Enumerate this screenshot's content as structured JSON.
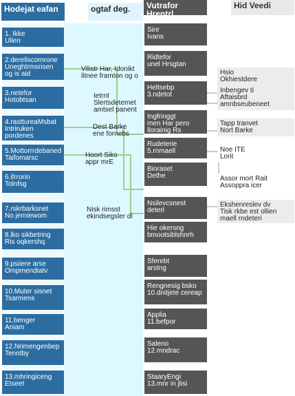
{
  "headers": {
    "left": "Hodejat eafan",
    "middle": "ogtaf deg.",
    "right": "Vutrafor Hrentrl",
    "far_right": "Hid Veedi"
  },
  "left_steps": [
    {
      "label": "1. Ikke",
      "sub": "Ulien"
    },
    {
      "label": "2.dereliscomrone",
      "sub": "Uneghtrmsrisen og is aid"
    },
    {
      "label": "3.netefor",
      "sub": "Hotobtsan"
    },
    {
      "label": "4.rasttureaMsbat",
      "sub": "Intriruken pordenes"
    },
    {
      "label": "5.Mottorrrdebaned",
      "sub": "Taifomarsc"
    },
    {
      "label": "6.ifrrorin",
      "sub": "Tolnfsg"
    },
    {
      "label": "7.rskrbarksnet",
      "sub": "No jerniewom"
    },
    {
      "label": "8.lko sikbetring",
      "sub": "Ris oqkershq"
    },
    {
      "label": "9.psiiere arse",
      "sub": "Ompmendiatv"
    },
    {
      "label": "10.Muter sisnet",
      "sub": "Tsarmens"
    },
    {
      "label": "11.benger",
      "sub": "Aniam"
    },
    {
      "label": "12.Nrimengenbep",
      "sub": "Tenntby"
    },
    {
      "label": "13.mhringiceng",
      "sub": "Etseet"
    }
  ],
  "middle_notes": [
    {
      "text": "Vilistr Har, Idonikt",
      "sub": "litnee framton og o"
    },
    {
      "text": "Ietrnt",
      "sub": "Slertsdetemet amtsel panent"
    },
    {
      "text": "Dest Barke",
      "sub": "ene fornebs"
    },
    {
      "text": "Hoort Siko",
      "sub": "appr mrE"
    },
    {
      "text": "Nisk rimsst",
      "sub": "ekindsegsler dl"
    }
  ],
  "right_steps": [
    {
      "label": "Sinr",
      "sub": "Ivans"
    },
    {
      "label": "Ridtefor",
      "sub": "unel Hrsgtan"
    },
    {
      "label": "Heltsebp",
      "sub": "3.ndetot"
    },
    {
      "label": "Ingfringgt",
      "sub": "men Har pero llorainig Rs"
    },
    {
      "label": "Rudeterie",
      "sub": "5.rnmaell"
    },
    {
      "label": "Bioraset",
      "sub": "Dethe"
    },
    {
      "label": "Nsilevcsnest",
      "sub": "deterl"
    },
    {
      "label": "Hie okersng",
      "sub": "bmootsiblshnrh"
    },
    {
      "label": "Sferebt",
      "sub": "arstng"
    },
    {
      "label": "Rengnesig bsko",
      "sub": "10.dnitjete cereap"
    },
    {
      "label": "Applia",
      "sub": "11.befpor"
    },
    {
      "label": "Saleno",
      "sub": "12.mndrac"
    },
    {
      "label": "StaaryEngi",
      "sub": "13.mnr in jlisi"
    }
  ],
  "far_right_notes": [
    {
      "text": "Hsio",
      "sub": "Okhiestdere"
    },
    {
      "text": "Inbengev ti",
      "sub": "Aftaisbrd amnbseubeneet"
    },
    {
      "text": "Tapp tranvet",
      "sub": "Nort Barke"
    },
    {
      "text": "Noe ITE",
      "sub": "Lorit"
    },
    {
      "text": "Assor mort Rait",
      "sub": "Assoppra icer"
    },
    {
      "text": "Ekshenreslev dv",
      "sub": "Tisk rkbe est ollien maell rndeteri"
    }
  ]
}
